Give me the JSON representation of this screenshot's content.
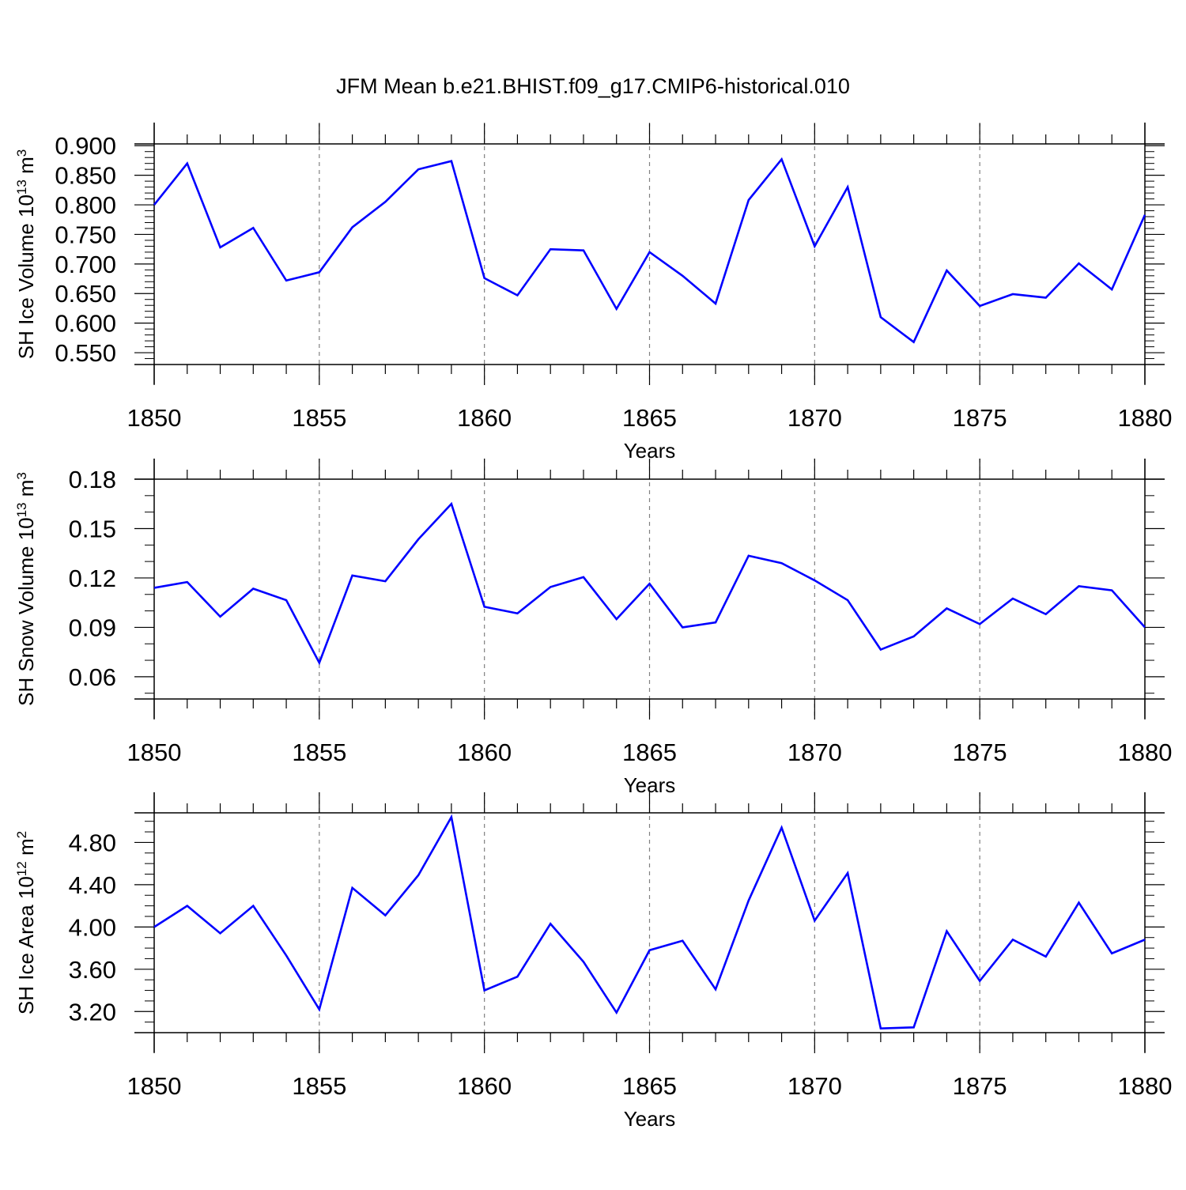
{
  "figure": {
    "title": "JFM Mean b.e21.BHIST.f09_g17.CMIP6-historical.010",
    "line_color": "#0000ff",
    "axis_color": "#000000",
    "grid_color": "#808080"
  },
  "chart_data": [
    {
      "type": "line",
      "ylabel_main": "SH Ice Volume 10",
      "ylabel_exp": "13",
      "ylabel_unit": " m",
      "ylabel_unit_exp": "3",
      "xlabel": "Years",
      "xlim": [
        1850,
        1880
      ],
      "ylim": [
        0.53,
        0.903
      ],
      "x_ticks": [
        1850,
        1855,
        1860,
        1865,
        1870,
        1875,
        1880
      ],
      "y_ticks": [
        0.55,
        0.6,
        0.65,
        0.7,
        0.75,
        0.8,
        0.85,
        0.9
      ],
      "y_tick_labels": [
        "0.550",
        "0.600",
        "0.650",
        "0.700",
        "0.750",
        "0.800",
        "0.850",
        "0.900"
      ],
      "y_minor_step": 0.01,
      "grid_x": [
        1855,
        1860,
        1865,
        1870,
        1875
      ],
      "x": [
        1850,
        1851,
        1852,
        1853,
        1854,
        1855,
        1856,
        1857,
        1858,
        1859,
        1860,
        1861,
        1862,
        1863,
        1864,
        1865,
        1866,
        1867,
        1868,
        1869,
        1870,
        1871,
        1872,
        1873,
        1874,
        1875,
        1876,
        1877,
        1878,
        1879,
        1880
      ],
      "series": [
        {
          "name": "SH Ice Volume",
          "values": [
            0.8,
            0.87,
            0.728,
            0.761,
            0.672,
            0.686,
            0.762,
            0.805,
            0.86,
            0.874,
            0.676,
            0.647,
            0.725,
            0.723,
            0.624,
            0.72,
            0.68,
            0.633,
            0.808,
            0.877,
            0.73,
            0.83,
            0.61,
            0.568,
            0.689,
            0.629,
            0.649,
            0.643,
            0.701,
            0.657,
            0.783
          ]
        }
      ]
    },
    {
      "type": "line",
      "ylabel_main": "SH Snow Volume 10",
      "ylabel_exp": "13",
      "ylabel_unit": " m",
      "ylabel_unit_exp": "3",
      "xlabel": "Years",
      "xlim": [
        1850,
        1880
      ],
      "ylim": [
        0.0465,
        0.18
      ],
      "x_ticks": [
        1850,
        1855,
        1860,
        1865,
        1870,
        1875,
        1880
      ],
      "y_ticks": [
        0.06,
        0.09,
        0.12,
        0.15,
        0.18
      ],
      "y_tick_labels": [
        "0.06",
        "0.09",
        "0.12",
        "0.15",
        "0.18"
      ],
      "y_minor_step": 0.01,
      "grid_x": [
        1855,
        1860,
        1865,
        1870,
        1875
      ],
      "x": [
        1850,
        1851,
        1852,
        1853,
        1854,
        1855,
        1856,
        1857,
        1858,
        1859,
        1860,
        1861,
        1862,
        1863,
        1864,
        1865,
        1866,
        1867,
        1868,
        1869,
        1870,
        1871,
        1872,
        1873,
        1874,
        1875,
        1876,
        1877,
        1878,
        1879,
        1880
      ],
      "series": [
        {
          "name": "SH Snow Volume",
          "values": [
            0.114,
            0.1175,
            0.0965,
            0.1135,
            0.1065,
            0.0685,
            0.1215,
            0.118,
            0.1435,
            0.165,
            0.1025,
            0.0985,
            0.1145,
            0.1205,
            0.095,
            0.1165,
            0.09,
            0.093,
            0.1335,
            0.129,
            0.1185,
            0.1065,
            0.0765,
            0.0845,
            0.1015,
            0.092,
            0.1075,
            0.098,
            0.115,
            0.1125,
            0.09
          ]
        }
      ]
    },
    {
      "type": "line",
      "ylabel_main": "SH Ice Area 10",
      "ylabel_exp": "12",
      "ylabel_unit": " m",
      "ylabel_unit_exp": "2",
      "xlabel": "Years",
      "xlim": [
        1850,
        1880
      ],
      "ylim": [
        3.0,
        5.08
      ],
      "x_ticks": [
        1850,
        1855,
        1860,
        1865,
        1870,
        1875,
        1880
      ],
      "y_ticks": [
        3.2,
        3.6,
        4.0,
        4.4,
        4.8
      ],
      "y_tick_labels": [
        "3.20",
        "3.60",
        "4.00",
        "4.40",
        "4.80"
      ],
      "y_minor_step": 0.1,
      "grid_x": [
        1855,
        1860,
        1865,
        1870,
        1875
      ],
      "x": [
        1850,
        1851,
        1852,
        1853,
        1854,
        1855,
        1856,
        1857,
        1858,
        1859,
        1860,
        1861,
        1862,
        1863,
        1864,
        1865,
        1866,
        1867,
        1868,
        1869,
        1870,
        1871,
        1872,
        1873,
        1874,
        1875,
        1876,
        1877,
        1878,
        1879,
        1880
      ],
      "series": [
        {
          "name": "SH Ice Area",
          "values": [
            4.0,
            4.2,
            3.94,
            4.2,
            3.73,
            3.22,
            4.37,
            4.11,
            4.49,
            5.04,
            3.4,
            3.53,
            4.03,
            3.67,
            3.19,
            3.78,
            3.87,
            3.41,
            4.25,
            4.94,
            4.06,
            4.51,
            3.04,
            3.05,
            3.96,
            3.49,
            3.88,
            3.72,
            4.23,
            3.75,
            3.88
          ]
        }
      ]
    }
  ]
}
